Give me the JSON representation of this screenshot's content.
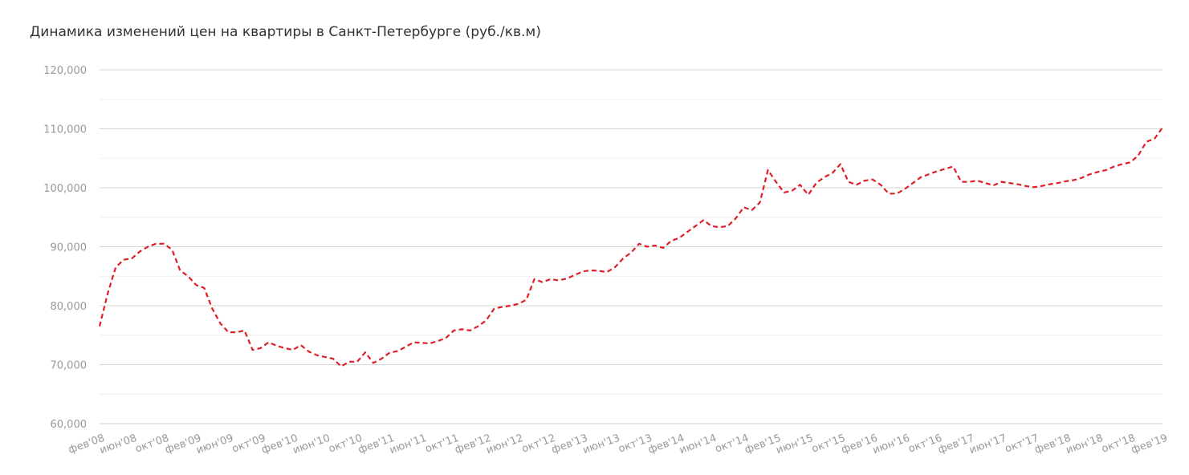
{
  "chart_data": {
    "type": "line",
    "title": "Динамика изменений цен на квартиры в Санкт-Петербурге (руб./кв.м)",
    "xlabel": "",
    "ylabel": "",
    "ylim": [
      60000,
      120000
    ],
    "yticks": [
      "60,000",
      "70,000",
      "80,000",
      "90,000",
      "100,000",
      "110,000",
      "120,000"
    ],
    "ytick_values": [
      60000,
      70000,
      80000,
      90000,
      100000,
      110000,
      120000
    ],
    "xticks": [
      "фев'08",
      "июн'08",
      "окт'08",
      "фев'09",
      "июн'09",
      "окт'09",
      "фев'10",
      "июн'10",
      "окт'10",
      "фев'11",
      "июн'11",
      "окт'11",
      "фев'12",
      "июн'12",
      "окт'12",
      "фев'13",
      "июн'13",
      "окт'13",
      "фев'14",
      "июн'14",
      "окт'14",
      "фев'15",
      "июн'15",
      "окт'15",
      "фев'16",
      "июн'16",
      "окт'16",
      "фев'17",
      "июн'17",
      "окт'17",
      "фев'18",
      "июн'18",
      "окт'18",
      "фев'19"
    ],
    "grid": true,
    "line_color": "#e01e26",
    "line_style": "dashed",
    "series": [
      {
        "values": [
          76500,
          82000,
          86500,
          87800,
          88000,
          89200,
          90000,
          90500,
          90500,
          89500,
          86000,
          85000,
          83500,
          83000,
          79500,
          77000,
          75500,
          75500,
          75800,
          72500,
          72800,
          73800,
          73200,
          72800,
          72500,
          73300,
          72200,
          71600,
          71300,
          71000,
          69700,
          70500,
          70500,
          72100,
          70300,
          71000,
          72000,
          72300,
          73000,
          73800,
          73700,
          73600,
          74000,
          74500,
          75800,
          76000,
          75800,
          76500,
          77500,
          79500,
          79800,
          80000,
          80300,
          81000,
          84500,
          84000,
          84500,
          84300,
          84600,
          85200,
          85800,
          86000,
          85900,
          85700,
          86500,
          88000,
          89000,
          90500,
          90000,
          90200,
          89800,
          91000,
          91500,
          92500,
          93500,
          94500,
          93500,
          93300,
          93500,
          94800,
          96700,
          96200,
          97500,
          103000,
          101000,
          99200,
          99500,
          100500,
          98800,
          100800,
          101800,
          102500,
          104000,
          101000,
          100500,
          101200,
          101400,
          100500,
          99000,
          99000,
          99800,
          100800,
          101800,
          102300,
          102800,
          103200,
          103600,
          101000,
          101000,
          101200,
          100800,
          100400,
          101000,
          100800,
          100600,
          100300,
          100100,
          100300,
          100600,
          100800,
          101100,
          101300,
          101700,
          102300,
          102700,
          103000,
          103600,
          104000,
          104300,
          105500,
          107800,
          108300,
          110200
        ]
      }
    ]
  }
}
